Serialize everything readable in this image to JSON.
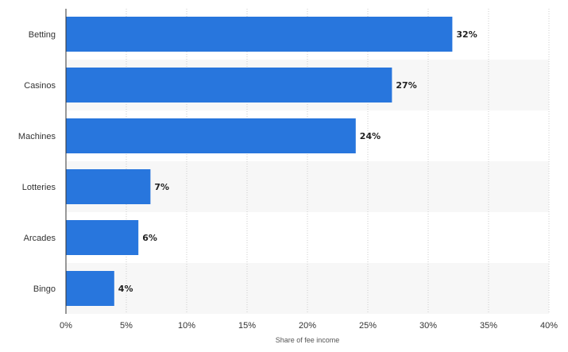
{
  "chart_data": {
    "type": "bar",
    "orientation": "horizontal",
    "categories": [
      "Betting",
      "Casinos",
      "Machines",
      "Lotteries",
      "Arcades",
      "Bingo"
    ],
    "values": [
      32,
      27,
      24,
      7,
      6,
      4
    ],
    "data_labels": [
      "32%",
      "27%",
      "24%",
      "7%",
      "6%",
      "4%"
    ],
    "xlim": [
      0,
      40
    ],
    "xticks": [
      0,
      5,
      10,
      15,
      20,
      25,
      30,
      35,
      40
    ],
    "xtick_labels": [
      "0%",
      "5%",
      "10%",
      "15%",
      "20%",
      "25%",
      "30%",
      "35%",
      "40%"
    ],
    "xlabel": "Share of fee income",
    "ylabel": "",
    "title": "",
    "grid": "vertical dotted",
    "colors": {
      "bar": "#2876dd",
      "band": "#f7f7f7",
      "grid": "#cccccc",
      "axis": "#333333"
    }
  }
}
